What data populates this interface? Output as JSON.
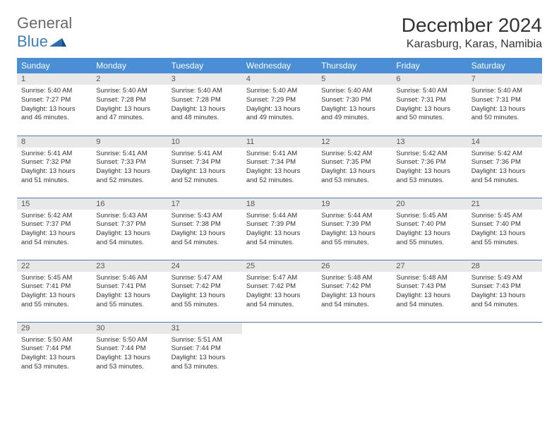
{
  "logo": {
    "line1": "General",
    "line2": "Blue"
  },
  "title": "December 2024",
  "location": "Karasburg, Karas, Namibia",
  "colors": {
    "header_bg": "#4a8fd6",
    "header_text": "#ffffff",
    "daynum_bg": "#e8e8e8",
    "row_divider": "#4a7fb0",
    "logo_gray": "#6a6a6a",
    "logo_blue": "#3b7fc4"
  },
  "layout": {
    "columns": 7,
    "rows": 5,
    "col_width_pct": 14.28
  },
  "daynames": [
    "Sunday",
    "Monday",
    "Tuesday",
    "Wednesday",
    "Thursday",
    "Friday",
    "Saturday"
  ],
  "days": [
    {
      "n": "1",
      "sr": "5:40 AM",
      "ss": "7:27 PM",
      "dl": "13 hours and 46 minutes."
    },
    {
      "n": "2",
      "sr": "5:40 AM",
      "ss": "7:28 PM",
      "dl": "13 hours and 47 minutes."
    },
    {
      "n": "3",
      "sr": "5:40 AM",
      "ss": "7:28 PM",
      "dl": "13 hours and 48 minutes."
    },
    {
      "n": "4",
      "sr": "5:40 AM",
      "ss": "7:29 PM",
      "dl": "13 hours and 49 minutes."
    },
    {
      "n": "5",
      "sr": "5:40 AM",
      "ss": "7:30 PM",
      "dl": "13 hours and 49 minutes."
    },
    {
      "n": "6",
      "sr": "5:40 AM",
      "ss": "7:31 PM",
      "dl": "13 hours and 50 minutes."
    },
    {
      "n": "7",
      "sr": "5:40 AM",
      "ss": "7:31 PM",
      "dl": "13 hours and 50 minutes."
    },
    {
      "n": "8",
      "sr": "5:41 AM",
      "ss": "7:32 PM",
      "dl": "13 hours and 51 minutes."
    },
    {
      "n": "9",
      "sr": "5:41 AM",
      "ss": "7:33 PM",
      "dl": "13 hours and 52 minutes."
    },
    {
      "n": "10",
      "sr": "5:41 AM",
      "ss": "7:34 PM",
      "dl": "13 hours and 52 minutes."
    },
    {
      "n": "11",
      "sr": "5:41 AM",
      "ss": "7:34 PM",
      "dl": "13 hours and 52 minutes."
    },
    {
      "n": "12",
      "sr": "5:42 AM",
      "ss": "7:35 PM",
      "dl": "13 hours and 53 minutes."
    },
    {
      "n": "13",
      "sr": "5:42 AM",
      "ss": "7:36 PM",
      "dl": "13 hours and 53 minutes."
    },
    {
      "n": "14",
      "sr": "5:42 AM",
      "ss": "7:36 PM",
      "dl": "13 hours and 54 minutes."
    },
    {
      "n": "15",
      "sr": "5:42 AM",
      "ss": "7:37 PM",
      "dl": "13 hours and 54 minutes."
    },
    {
      "n": "16",
      "sr": "5:43 AM",
      "ss": "7:37 PM",
      "dl": "13 hours and 54 minutes."
    },
    {
      "n": "17",
      "sr": "5:43 AM",
      "ss": "7:38 PM",
      "dl": "13 hours and 54 minutes."
    },
    {
      "n": "18",
      "sr": "5:44 AM",
      "ss": "7:39 PM",
      "dl": "13 hours and 54 minutes."
    },
    {
      "n": "19",
      "sr": "5:44 AM",
      "ss": "7:39 PM",
      "dl": "13 hours and 55 minutes."
    },
    {
      "n": "20",
      "sr": "5:45 AM",
      "ss": "7:40 PM",
      "dl": "13 hours and 55 minutes."
    },
    {
      "n": "21",
      "sr": "5:45 AM",
      "ss": "7:40 PM",
      "dl": "13 hours and 55 minutes."
    },
    {
      "n": "22",
      "sr": "5:45 AM",
      "ss": "7:41 PM",
      "dl": "13 hours and 55 minutes."
    },
    {
      "n": "23",
      "sr": "5:46 AM",
      "ss": "7:41 PM",
      "dl": "13 hours and 55 minutes."
    },
    {
      "n": "24",
      "sr": "5:47 AM",
      "ss": "7:42 PM",
      "dl": "13 hours and 55 minutes."
    },
    {
      "n": "25",
      "sr": "5:47 AM",
      "ss": "7:42 PM",
      "dl": "13 hours and 54 minutes."
    },
    {
      "n": "26",
      "sr": "5:48 AM",
      "ss": "7:42 PM",
      "dl": "13 hours and 54 minutes."
    },
    {
      "n": "27",
      "sr": "5:48 AM",
      "ss": "7:43 PM",
      "dl": "13 hours and 54 minutes."
    },
    {
      "n": "28",
      "sr": "5:49 AM",
      "ss": "7:43 PM",
      "dl": "13 hours and 54 minutes."
    },
    {
      "n": "29",
      "sr": "5:50 AM",
      "ss": "7:44 PM",
      "dl": "13 hours and 53 minutes."
    },
    {
      "n": "30",
      "sr": "5:50 AM",
      "ss": "7:44 PM",
      "dl": "13 hours and 53 minutes."
    },
    {
      "n": "31",
      "sr": "5:51 AM",
      "ss": "7:44 PM",
      "dl": "13 hours and 53 minutes."
    },
    null,
    null,
    null,
    null
  ],
  "labels": {
    "sunrise": "Sunrise:",
    "sunset": "Sunset:",
    "daylight": "Daylight:"
  }
}
